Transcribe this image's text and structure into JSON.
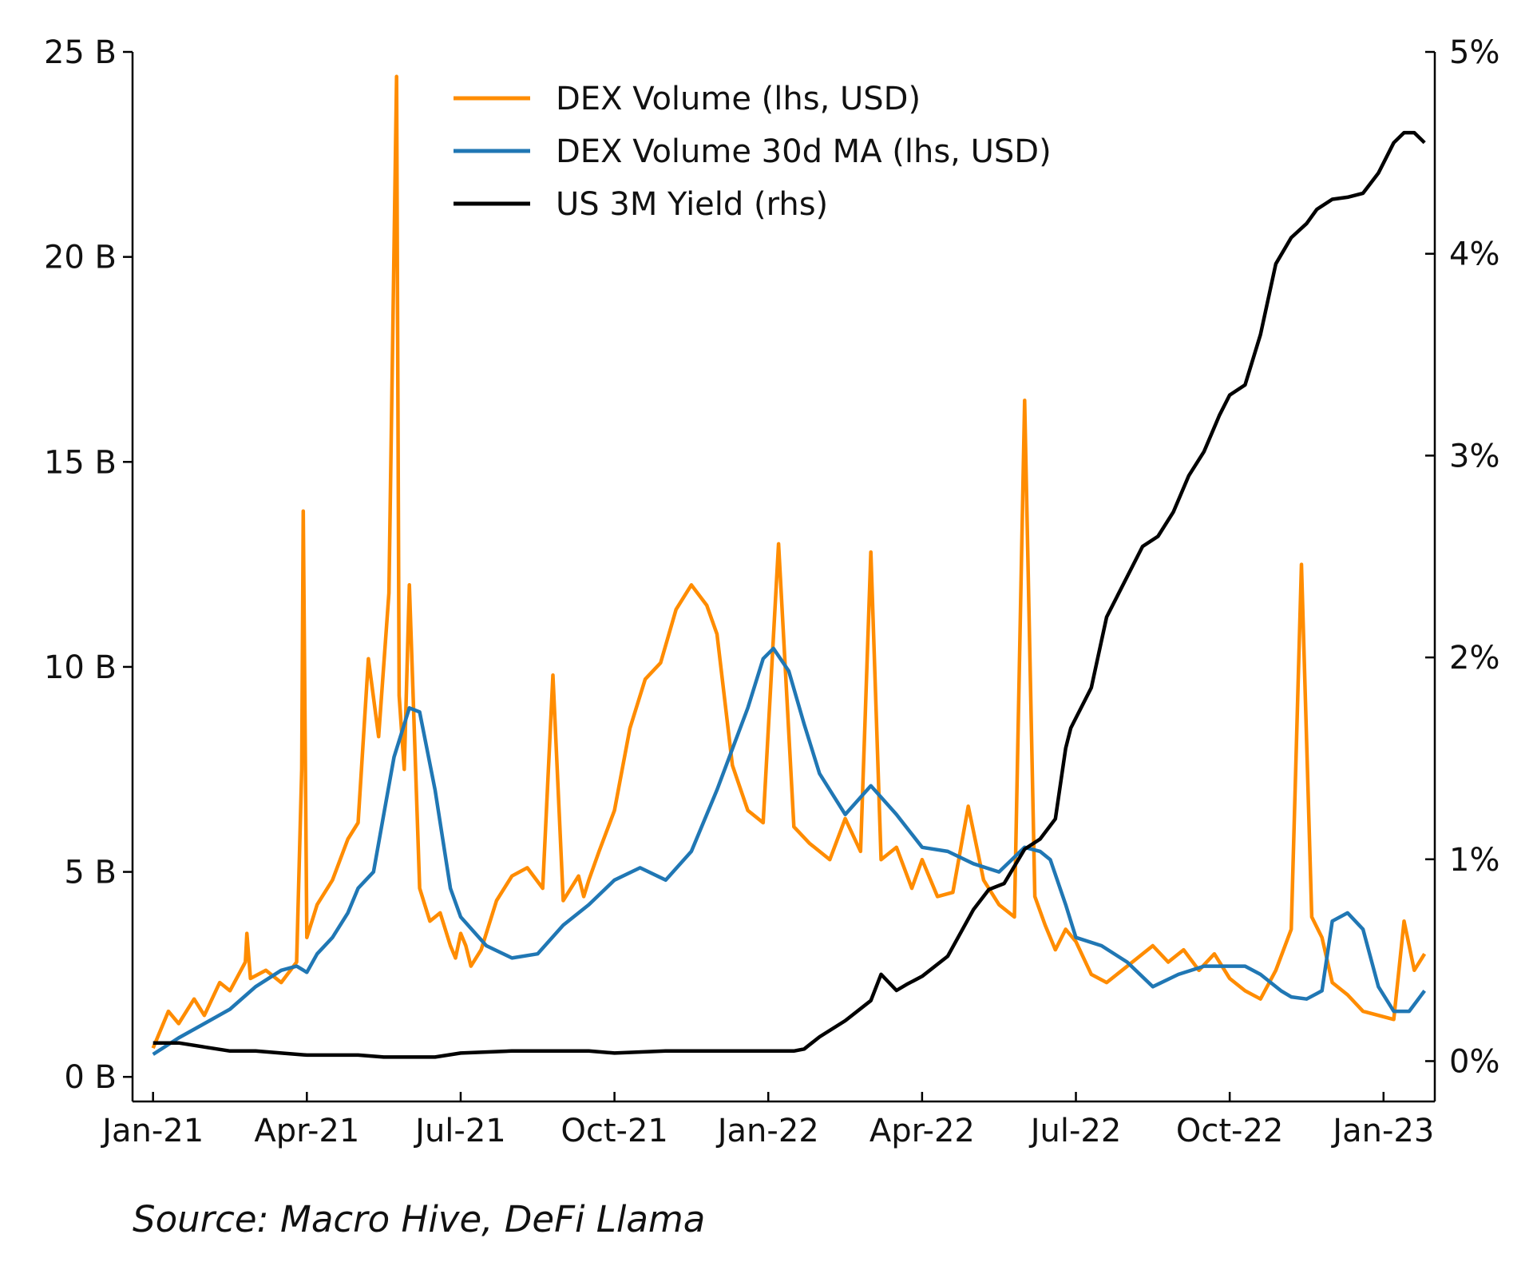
{
  "chart_data": {
    "type": "line",
    "title": "",
    "xlabel": "",
    "ylabel_left": "",
    "ylabel_right": "",
    "x_tick_labels": [
      "Jan-21",
      "Apr-21",
      "Jul-21",
      "Oct-21",
      "Jan-22",
      "Apr-22",
      "Jul-22",
      "Oct-22",
      "Jan-23"
    ],
    "left_axis": {
      "range": [
        -0.6,
        25
      ],
      "ticks": [
        0,
        5,
        10,
        15,
        20,
        25
      ],
      "tick_labels": [
        "0 B",
        "5 B",
        "10 B",
        "15 B",
        "20 B",
        "25 B"
      ]
    },
    "right_axis": {
      "range": [
        -0.2,
        5
      ],
      "ticks": [
        0,
        1,
        2,
        3,
        4,
        5
      ],
      "tick_labels": [
        "0%",
        "1%",
        "2%",
        "3%",
        "4%",
        "5%"
      ]
    },
    "x_range_months": [
      -0.4,
      25.0
    ],
    "legend_position": "top-center",
    "series": [
      {
        "name": "DEX Volume (lhs, USD)",
        "axis": "left",
        "color": "#FF8C00",
        "x": [
          0.0,
          0.3,
          0.5,
          0.8,
          1.0,
          1.3,
          1.5,
          1.8,
          1.83,
          1.9,
          2.2,
          2.5,
          2.8,
          2.9,
          2.93,
          3.0,
          3.2,
          3.5,
          3.8,
          4.0,
          4.2,
          4.4,
          4.6,
          4.75,
          4.8,
          4.9,
          5.0,
          5.2,
          5.4,
          5.6,
          5.8,
          5.9,
          6.0,
          6.1,
          6.2,
          6.4,
          6.7,
          7.0,
          7.3,
          7.6,
          7.8,
          8.0,
          8.3,
          8.4,
          8.5,
          8.7,
          9.0,
          9.3,
          9.6,
          9.9,
          10.2,
          10.5,
          10.8,
          11.0,
          11.3,
          11.6,
          11.9,
          12.2,
          12.5,
          12.8,
          13.2,
          13.5,
          13.8,
          14.0,
          14.2,
          14.5,
          14.8,
          15.0,
          15.3,
          15.6,
          15.9,
          16.2,
          16.5,
          16.8,
          17.0,
          17.2,
          17.4,
          17.6,
          17.8,
          18.0,
          18.3,
          18.6,
          18.9,
          19.2,
          19.5,
          19.8,
          20.1,
          20.4,
          20.7,
          21.0,
          21.3,
          21.6,
          21.9,
          22.2,
          22.4,
          22.6,
          22.8,
          23.0,
          23.3,
          23.6,
          23.9,
          24.2,
          24.4,
          24.6,
          24.8
        ],
        "values": [
          0.7,
          1.6,
          1.3,
          1.9,
          1.5,
          2.3,
          2.1,
          2.8,
          3.5,
          2.4,
          2.6,
          2.3,
          2.8,
          7.5,
          13.8,
          3.4,
          4.2,
          4.8,
          5.8,
          6.2,
          10.2,
          8.3,
          11.8,
          24.4,
          9.3,
          7.5,
          12.0,
          4.6,
          3.8,
          4.0,
          3.2,
          2.9,
          3.5,
          3.2,
          2.7,
          3.1,
          4.3,
          4.9,
          5.1,
          4.6,
          9.8,
          4.3,
          4.9,
          4.4,
          4.8,
          5.5,
          6.5,
          8.5,
          9.7,
          10.1,
          11.4,
          12.0,
          11.5,
          10.8,
          7.6,
          6.5,
          6.2,
          13.0,
          6.1,
          5.7,
          5.3,
          6.3,
          5.5,
          12.8,
          5.3,
          5.6,
          4.6,
          5.3,
          4.4,
          4.5,
          6.6,
          4.8,
          4.2,
          3.9,
          16.5,
          4.4,
          3.7,
          3.1,
          3.6,
          3.3,
          2.5,
          2.3,
          2.6,
          2.9,
          3.2,
          2.8,
          3.1,
          2.6,
          3.0,
          2.4,
          2.1,
          1.9,
          2.6,
          3.6,
          12.5,
          3.9,
          3.4,
          2.3,
          2.0,
          1.6,
          1.5,
          1.4,
          3.8,
          2.6,
          3.0
        ]
      },
      {
        "name": "DEX Volume 30d MA (lhs, USD)",
        "axis": "left",
        "color": "#2077B4",
        "x": [
          0.0,
          0.5,
          1.0,
          1.5,
          2.0,
          2.5,
          2.8,
          3.0,
          3.2,
          3.5,
          3.8,
          4.0,
          4.3,
          4.5,
          4.7,
          5.0,
          5.2,
          5.5,
          5.8,
          6.0,
          6.5,
          7.0,
          7.5,
          8.0,
          8.5,
          9.0,
          9.5,
          10.0,
          10.5,
          11.0,
          11.3,
          11.6,
          11.9,
          12.1,
          12.4,
          12.7,
          13.0,
          13.5,
          14.0,
          14.5,
          15.0,
          15.5,
          16.0,
          16.5,
          17.0,
          17.3,
          17.5,
          17.8,
          18.0,
          18.5,
          19.0,
          19.5,
          20.0,
          20.5,
          21.0,
          21.3,
          21.6,
          21.8,
          22.0,
          22.2,
          22.5,
          22.8,
          23.0,
          23.3,
          23.6,
          23.9,
          24.2,
          24.5,
          24.8
        ],
        "values": [
          0.55,
          0.95,
          1.3,
          1.65,
          2.2,
          2.6,
          2.7,
          2.55,
          3.0,
          3.4,
          4.0,
          4.6,
          5.0,
          6.4,
          7.8,
          9.0,
          8.9,
          7.0,
          4.6,
          3.9,
          3.2,
          2.9,
          3.0,
          3.7,
          4.2,
          4.8,
          5.1,
          4.8,
          5.5,
          7.0,
          8.0,
          9.0,
          10.2,
          10.45,
          9.9,
          8.6,
          7.4,
          6.4,
          7.1,
          6.4,
          5.6,
          5.5,
          5.2,
          5.0,
          5.6,
          5.5,
          5.3,
          4.2,
          3.4,
          3.2,
          2.8,
          2.2,
          2.5,
          2.7,
          2.7,
          2.7,
          2.5,
          2.3,
          2.1,
          1.95,
          1.9,
          2.1,
          3.8,
          4.0,
          3.6,
          2.2,
          1.6,
          1.6,
          2.1
        ]
      },
      {
        "name": "US 3M Yield (rhs)",
        "axis": "right",
        "color": "#000000",
        "x": [
          0.0,
          0.5,
          1.0,
          1.5,
          2.0,
          2.5,
          3.0,
          3.5,
          4.0,
          4.5,
          5.0,
          5.5,
          6.0,
          7.0,
          8.0,
          8.5,
          9.0,
          10.0,
          11.0,
          12.0,
          12.5,
          12.7,
          13.0,
          13.5,
          14.0,
          14.2,
          14.5,
          14.7,
          15.0,
          15.5,
          16.0,
          16.3,
          16.6,
          17.0,
          17.3,
          17.6,
          17.8,
          17.9,
          18.0,
          18.3,
          18.6,
          19.0,
          19.3,
          19.6,
          19.9,
          20.2,
          20.5,
          20.8,
          21.0,
          21.3,
          21.6,
          21.9,
          22.2,
          22.5,
          22.7,
          23.0,
          23.3,
          23.6,
          23.9,
          24.2,
          24.4,
          24.6,
          24.8
        ],
        "values": [
          0.09,
          0.09,
          0.07,
          0.05,
          0.05,
          0.04,
          0.03,
          0.03,
          0.03,
          0.02,
          0.02,
          0.02,
          0.04,
          0.05,
          0.05,
          0.05,
          0.04,
          0.05,
          0.05,
          0.05,
          0.05,
          0.06,
          0.12,
          0.2,
          0.3,
          0.43,
          0.35,
          0.38,
          0.42,
          0.52,
          0.75,
          0.85,
          0.88,
          1.05,
          1.1,
          1.2,
          1.55,
          1.65,
          1.7,
          1.85,
          2.2,
          2.4,
          2.55,
          2.6,
          2.72,
          2.9,
          3.02,
          3.2,
          3.3,
          3.35,
          3.6,
          3.95,
          4.08,
          4.15,
          4.22,
          4.27,
          4.28,
          4.3,
          4.4,
          4.55,
          4.6,
          4.6,
          4.55
        ]
      }
    ]
  },
  "source": "Source: Macro Hive, DeFi Llama"
}
